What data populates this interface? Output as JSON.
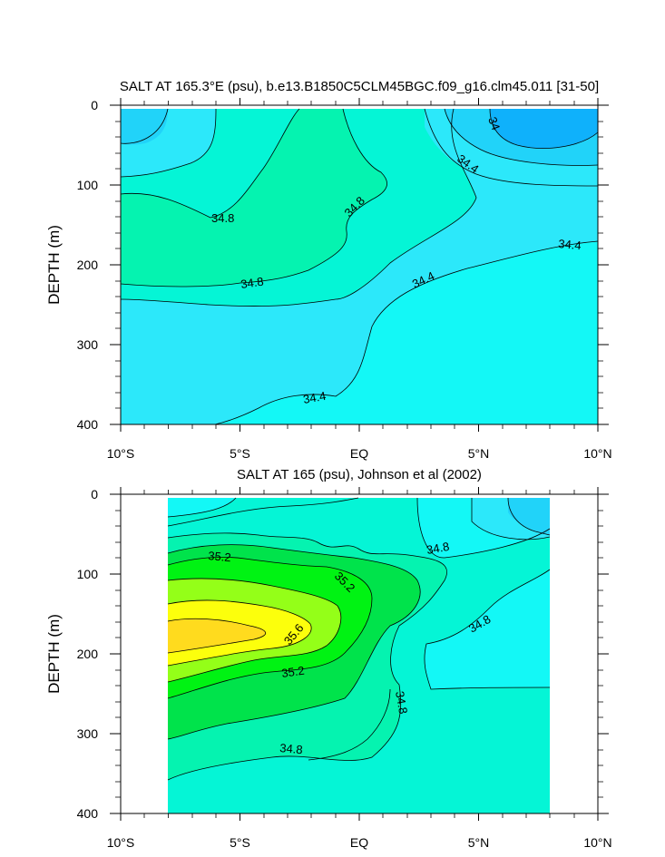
{
  "chart_data": [
    {
      "type": "contour",
      "title": "SALT AT 165.3°E (psu), b.e13.B1850C5CLM45BGC.f09_g16.clm45.011 [31-50]",
      "xlabel": "",
      "ylabel": "DEPTH (m)",
      "x_ticks": [
        "10°S",
        "5°S",
        "EQ",
        "5°N",
        "10°N"
      ],
      "y_ticks": [
        "0",
        "100",
        "200",
        "300",
        "400"
      ],
      "xlim": [
        -10,
        10
      ],
      "ylim": [
        0,
        400
      ],
      "contour_labels": [
        "34",
        "34.4",
        "34.8",
        "34.8",
        "34.8",
        "34.4",
        "34.4",
        "34.4"
      ],
      "levels": [
        33.8,
        34.0,
        34.2,
        34.4,
        34.6,
        34.8,
        35.0
      ]
    },
    {
      "type": "contour",
      "title": "SALT AT 165 (psu), Johnson et al (2002)",
      "xlabel": "",
      "ylabel": "DEPTH (m)",
      "x_ticks": [
        "10°S",
        "5°S",
        "EQ",
        "5°N",
        "10°N"
      ],
      "y_ticks": [
        "0",
        "100",
        "200",
        "300",
        "400"
      ],
      "xlim": [
        -10,
        10
      ],
      "ylim": [
        0,
        400
      ],
      "data_xrange": [
        -8,
        8
      ],
      "contour_labels": [
        "35.2",
        "35.2",
        "34.8",
        "35.6",
        "34.8",
        "35.2",
        "34.8",
        "34.8"
      ],
      "levels": [
        34.2,
        34.4,
        34.6,
        34.8,
        35.0,
        35.2,
        35.4,
        35.6,
        35.8
      ]
    }
  ],
  "colors": {
    "c33_8": "#0fb1fb",
    "c34_0": "#21d3f9",
    "c34_2": "#2ce8fa",
    "c34_4": "#13f8f6",
    "c34_6": "#05f5d6",
    "c34_8": "#05f3b0",
    "c35_0": "#00e34b",
    "c35_2": "#00f313",
    "c35_4": "#94ff18",
    "c35_6": "#fcff0c",
    "c35_8": "#ffdb1e"
  }
}
